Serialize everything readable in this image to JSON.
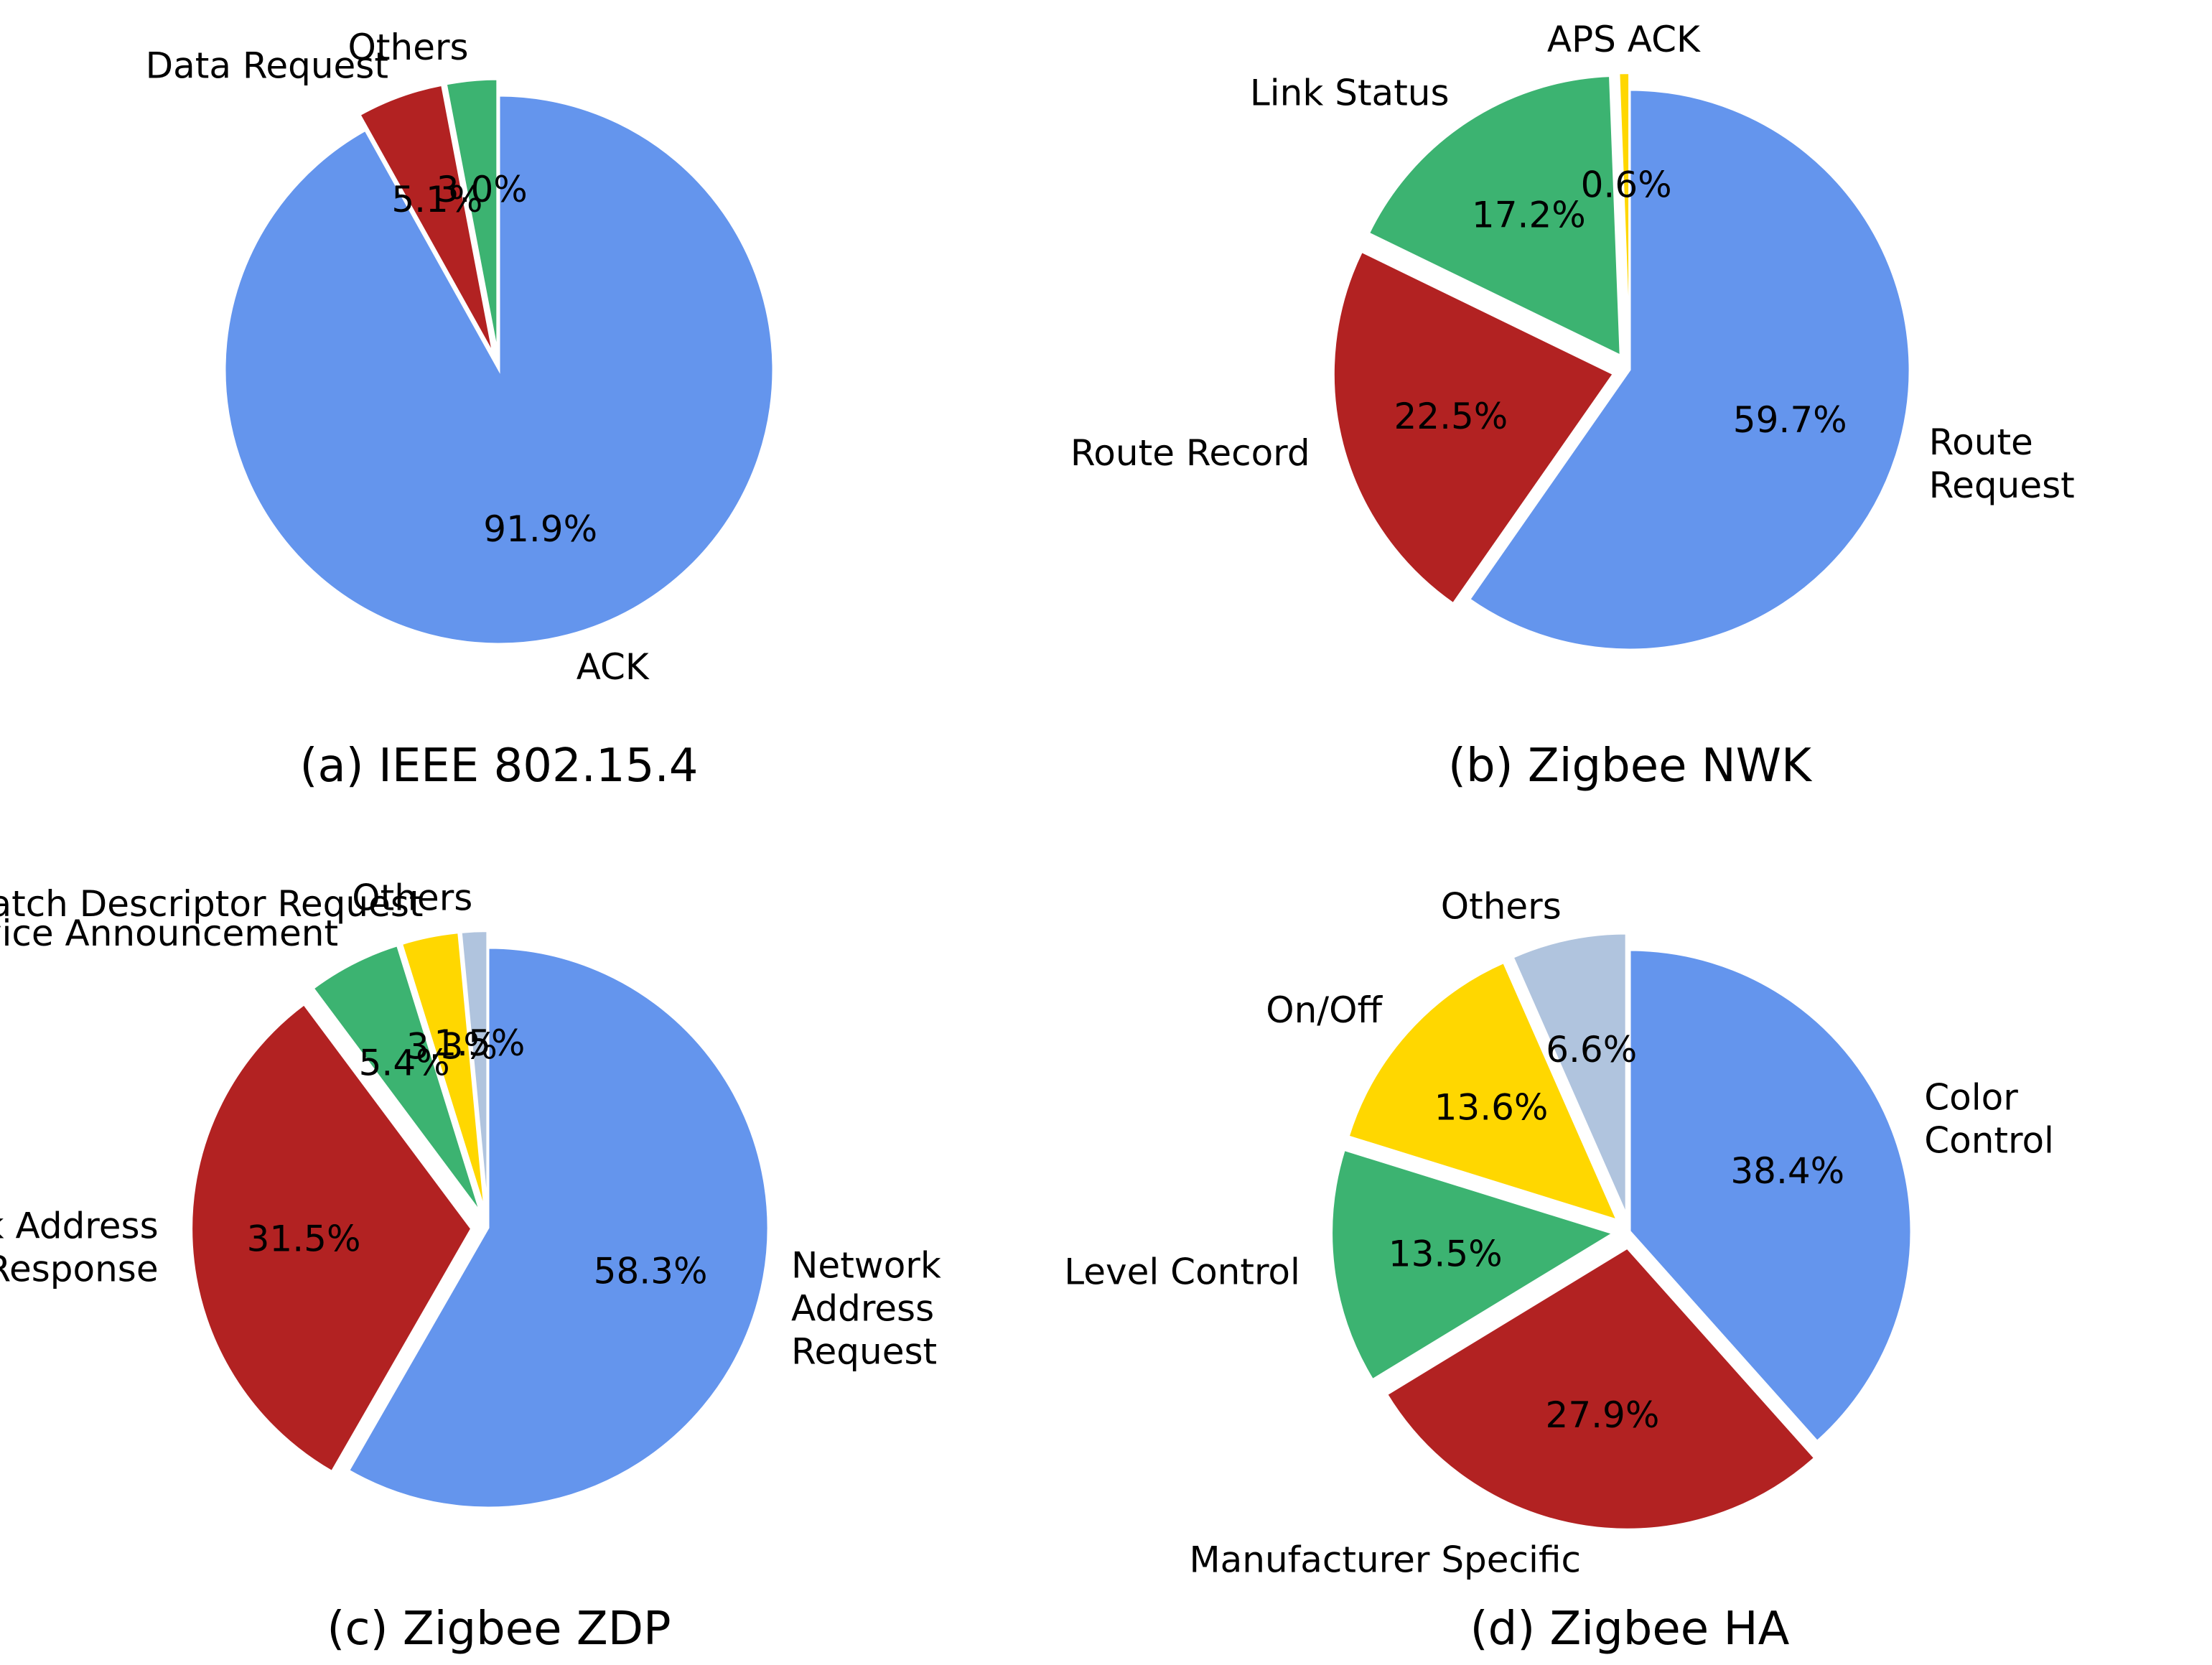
{
  "chart_data": [
    {
      "type": "pie",
      "title": "(a) IEEE 802.15.4",
      "slices": [
        {
          "label": "Others",
          "value": 3.0,
          "pct_label": "3.0%",
          "color": "#3cb371",
          "exploded": true
        },
        {
          "label": "Data Request",
          "value": 5.1,
          "pct_label": "5.1%",
          "color": "#b22222",
          "exploded": true
        },
        {
          "label": "ACK",
          "value": 91.9,
          "pct_label": "91.9%",
          "color": "#6495ed",
          "exploded": false
        }
      ]
    },
    {
      "type": "pie",
      "title": "(b) Zigbee NWK",
      "slices": [
        {
          "label": "APS ACK",
          "value": 0.6,
          "pct_label": "0.6%",
          "color": "#ffd700",
          "exploded": true
        },
        {
          "label": "Link Status",
          "value": 17.2,
          "pct_label": "17.2%",
          "color": "#3cb371",
          "exploded": true
        },
        {
          "label": "Route Record",
          "value": 22.5,
          "pct_label": "22.5%",
          "color": "#b22222",
          "exploded": true
        },
        {
          "label": "Route\nRequest",
          "value": 59.7,
          "pct_label": "59.7%",
          "color": "#6495ed",
          "exploded": false
        }
      ]
    },
    {
      "type": "pie",
      "title": "(c) Zigbee ZDP",
      "slices": [
        {
          "label": "Others",
          "value": 1.5,
          "pct_label": "1.5%",
          "color": "#b0c4de",
          "exploded": true
        },
        {
          "label": "Match Descriptor Request",
          "value": 3.3,
          "pct_label": "3.3%",
          "color": "#ffd700",
          "exploded": true
        },
        {
          "label": "Device Announcement",
          "value": 5.4,
          "pct_label": "5.4%",
          "color": "#3cb371",
          "exploded": true
        },
        {
          "label": "Network Address\nResponse",
          "value": 31.5,
          "pct_label": "31.5%",
          "color": "#b22222",
          "exploded": true
        },
        {
          "label": "Network\nAddress\nRequest",
          "value": 58.3,
          "pct_label": "58.3%",
          "color": "#6495ed",
          "exploded": false
        }
      ]
    },
    {
      "type": "pie",
      "title": "(d) Zigbee HA",
      "slices": [
        {
          "label": "Others",
          "value": 6.6,
          "pct_label": "6.6%",
          "color": "#b0c4de",
          "exploded": true
        },
        {
          "label": "On/Off",
          "value": 13.6,
          "pct_label": "13.6%",
          "color": "#ffd700",
          "exploded": true
        },
        {
          "label": "Level Control",
          "value": 13.5,
          "pct_label": "13.5%",
          "color": "#3cb371",
          "exploded": true
        },
        {
          "label": "Manufacturer Specific",
          "value": 27.9,
          "pct_label": "27.9%",
          "color": "#b22222",
          "exploded": true
        },
        {
          "label": "Color\nControl",
          "value": 38.4,
          "pct_label": "38.4%",
          "color": "#6495ed",
          "exploded": false
        }
      ]
    }
  ]
}
